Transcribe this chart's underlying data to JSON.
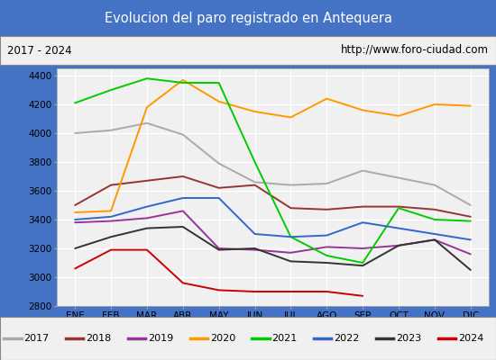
{
  "title": "Evolucion del paro registrado en Antequera",
  "subtitle_left": "2017 - 2024",
  "subtitle_right": "http://www.foro-ciudad.com",
  "months": [
    "ENE",
    "FEB",
    "MAR",
    "ABR",
    "MAY",
    "JUN",
    "JUL",
    "AGO",
    "SEP",
    "OCT",
    "NOV",
    "DIC"
  ],
  "ylim": [
    2800,
    4450
  ],
  "yticks": [
    2800,
    3000,
    3200,
    3400,
    3600,
    3800,
    4000,
    4200,
    4400
  ],
  "series": {
    "2017": {
      "color": "#aaaaaa",
      "data": [
        4000,
        4020,
        4070,
        3990,
        3790,
        3660,
        3640,
        3650,
        3740,
        3690,
        3640,
        3500
      ]
    },
    "2018": {
      "color": "#993333",
      "data": [
        3500,
        3640,
        3670,
        3700,
        3620,
        3640,
        3480,
        3470,
        3490,
        3490,
        3470,
        3420
      ]
    },
    "2019": {
      "color": "#993399",
      "data": [
        3380,
        3390,
        3410,
        3460,
        3200,
        3190,
        3170,
        3210,
        3200,
        3220,
        3260,
        3160
      ]
    },
    "2020": {
      "color": "#ff9900",
      "data": [
        3450,
        3460,
        4180,
        4370,
        4220,
        4150,
        4110,
        4240,
        4160,
        4120,
        4200,
        4190
      ]
    },
    "2021": {
      "color": "#00cc00",
      "data": [
        4210,
        4300,
        4380,
        4350,
        4350,
        3800,
        3280,
        3150,
        3100,
        3480,
        3400,
        3390
      ]
    },
    "2022": {
      "color": "#3366cc",
      "data": [
        3400,
        3420,
        3490,
        3550,
        3550,
        3300,
        3280,
        3290,
        3380,
        3340,
        3300,
        3260
      ]
    },
    "2023": {
      "color": "#333333",
      "data": [
        3200,
        3280,
        3340,
        3350,
        3190,
        3200,
        3110,
        3100,
        3080,
        3220,
        3260,
        3050
      ]
    },
    "2024": {
      "color": "#cc0000",
      "data": [
        3060,
        3190,
        3190,
        2960,
        2910,
        2900,
        2900,
        2900,
        2870,
        null,
        null,
        null
      ]
    }
  },
  "title_bg": "#5b9bd5",
  "title_color": "white",
  "subtitle_bg": "#f0f0f0",
  "plot_bg": "#f0f0f0",
  "legend_bg": "#f0f0f0",
  "fig_bg": "#4472c4"
}
